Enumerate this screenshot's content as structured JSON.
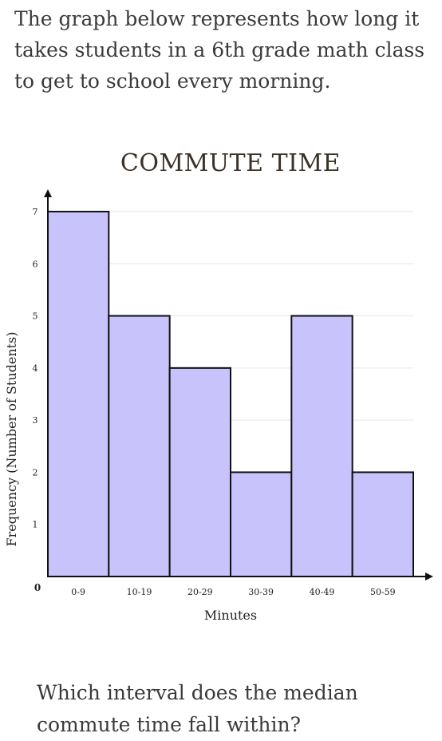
{
  "intro_text": "The graph below represents how long it takes students in a 6th grade math class to get to school every morning.",
  "question_text": "Which interval does the median commute time fall within?",
  "colors": {
    "bar_fill": "#c8c3fb",
    "bar_stroke": "#111111",
    "grid": "#e6e6e6",
    "axis": "#111111"
  },
  "chart_data": {
    "type": "bar",
    "title": "COMMUTE TIME",
    "xlabel": "Minutes",
    "ylabel": "Frequency (Number of Students)",
    "categories": [
      "0-9",
      "10-19",
      "20-29",
      "30-39",
      "40-49",
      "50-59"
    ],
    "values": [
      7,
      5,
      4,
      2,
      5,
      2
    ],
    "ylim": [
      0,
      7
    ],
    "yticks": [
      "0",
      "1",
      "2",
      "3",
      "4",
      "5",
      "6",
      "7"
    ],
    "grid": true,
    "legend": "none"
  }
}
